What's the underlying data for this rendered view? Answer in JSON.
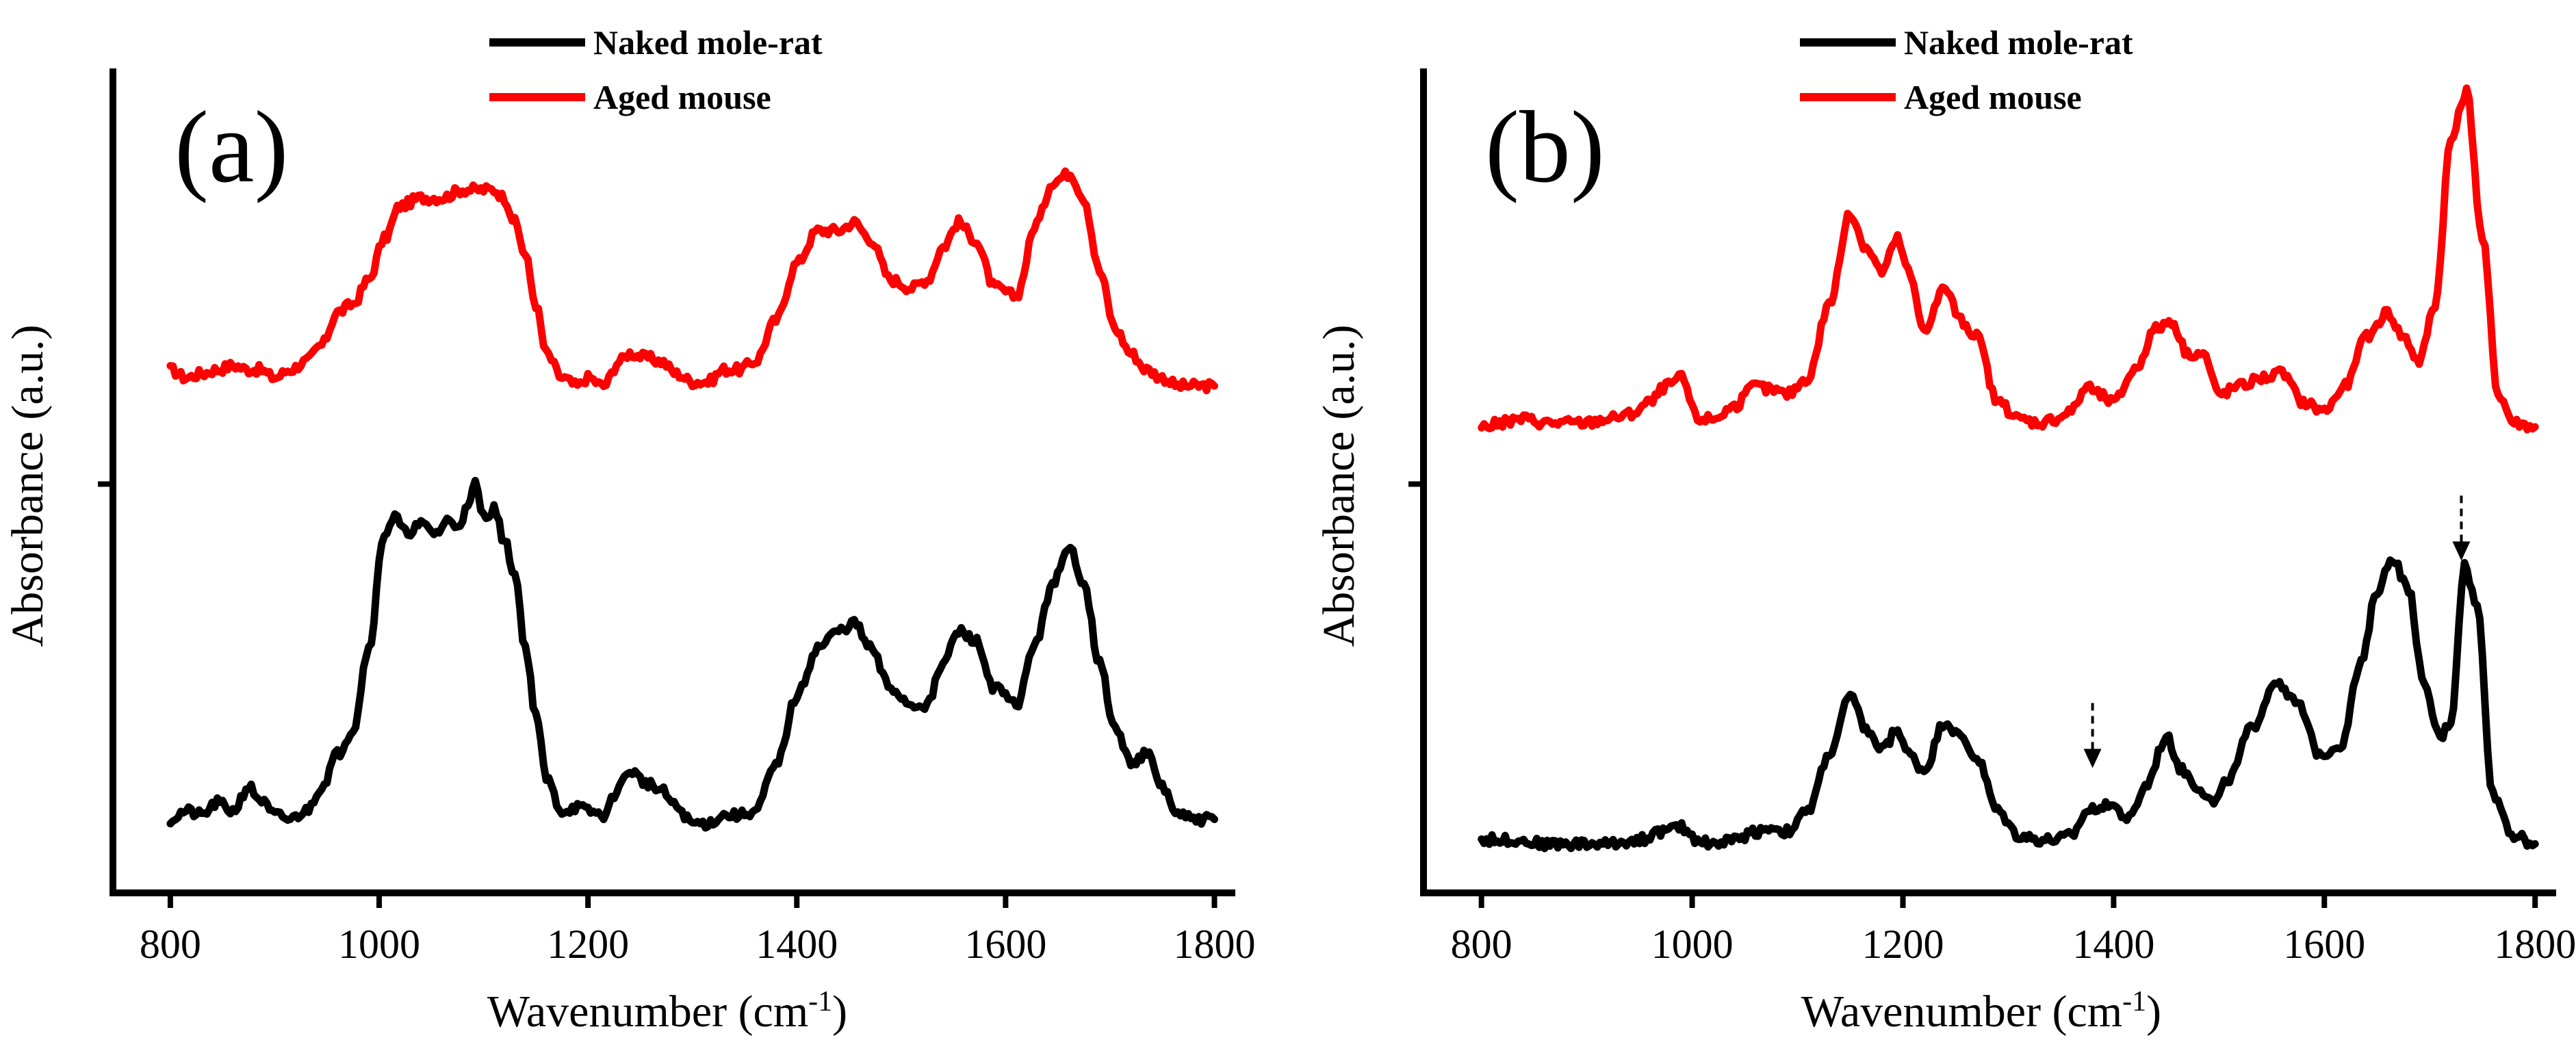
{
  "chart_data": [
    {
      "type": "line",
      "panel_label": "(a)",
      "xlabel_main": "Wavenumber (cm",
      "xlabel_sup": "-1",
      "xlabel_close": ")",
      "ylabel": "Absorbance (a.u.)",
      "xlim": [
        745,
        1820
      ],
      "ylim": [
        0,
        1
      ],
      "xticks": [
        800,
        1000,
        1200,
        1400,
        1600,
        1800
      ],
      "xtick_labels": [
        "800",
        "1000",
        "1200",
        "1400",
        "1600",
        "1800"
      ],
      "y_tick_positions": [
        0.5
      ],
      "legend_position": "top-left",
      "series": [
        {
          "name": "Naked mole-rat",
          "color": "#000000",
          "x": [
            800,
            815,
            830,
            845,
            860,
            875,
            885,
            900,
            915,
            930,
            945,
            960,
            975,
            990,
            1005,
            1015,
            1025,
            1040,
            1055,
            1065,
            1075,
            1085,
            1092,
            1100,
            1110,
            1120,
            1130,
            1140,
            1150,
            1160,
            1175,
            1190,
            1200,
            1215,
            1230,
            1240,
            1255,
            1270,
            1285,
            1300,
            1315,
            1330,
            1345,
            1360,
            1380,
            1400,
            1420,
            1440,
            1455,
            1470,
            1490,
            1510,
            1525,
            1540,
            1555,
            1570,
            1590,
            1610,
            1630,
            1645,
            1662,
            1675,
            1690,
            1705,
            1720,
            1735,
            1750,
            1765,
            1780,
            1800
          ],
          "values": [
            0.09,
            0.1,
            0.095,
            0.11,
            0.1,
            0.13,
            0.115,
            0.095,
            0.09,
            0.1,
            0.13,
            0.17,
            0.2,
            0.3,
            0.44,
            0.46,
            0.44,
            0.45,
            0.44,
            0.455,
            0.45,
            0.47,
            0.5,
            0.46,
            0.47,
            0.43,
            0.39,
            0.3,
            0.22,
            0.14,
            0.1,
            0.105,
            0.1,
            0.095,
            0.13,
            0.15,
            0.135,
            0.125,
            0.105,
            0.085,
            0.085,
            0.095,
            0.095,
            0.1,
            0.155,
            0.24,
            0.3,
            0.32,
            0.33,
            0.3,
            0.25,
            0.23,
            0.23,
            0.28,
            0.32,
            0.31,
            0.25,
            0.23,
            0.31,
            0.38,
            0.42,
            0.38,
            0.28,
            0.2,
            0.16,
            0.17,
            0.13,
            0.095,
            0.09,
            0.09
          ]
        },
        {
          "name": "Aged mouse",
          "color": "#ff0000",
          "x": [
            800,
            815,
            830,
            845,
            860,
            875,
            885,
            900,
            915,
            930,
            945,
            960,
            975,
            990,
            1005,
            1020,
            1040,
            1060,
            1080,
            1095,
            1110,
            1120,
            1130,
            1140,
            1150,
            1160,
            1175,
            1190,
            1200,
            1215,
            1230,
            1240,
            1255,
            1270,
            1285,
            1300,
            1315,
            1330,
            1345,
            1360,
            1380,
            1400,
            1420,
            1440,
            1455,
            1470,
            1490,
            1510,
            1525,
            1540,
            1555,
            1570,
            1590,
            1610,
            1630,
            1645,
            1662,
            1675,
            1690,
            1705,
            1720,
            1735,
            1750,
            1765,
            1780,
            1800
          ],
          "values": [
            0.64,
            0.63,
            0.635,
            0.64,
            0.645,
            0.64,
            0.64,
            0.63,
            0.64,
            0.65,
            0.67,
            0.71,
            0.72,
            0.75,
            0.8,
            0.84,
            0.85,
            0.85,
            0.86,
            0.86,
            0.86,
            0.85,
            0.82,
            0.78,
            0.72,
            0.66,
            0.63,
            0.62,
            0.63,
            0.62,
            0.65,
            0.66,
            0.655,
            0.65,
            0.635,
            0.625,
            0.625,
            0.64,
            0.64,
            0.65,
            0.7,
            0.77,
            0.81,
            0.81,
            0.82,
            0.8,
            0.75,
            0.74,
            0.75,
            0.79,
            0.82,
            0.8,
            0.74,
            0.73,
            0.82,
            0.87,
            0.88,
            0.85,
            0.76,
            0.69,
            0.66,
            0.64,
            0.63,
            0.62,
            0.62,
            0.62
          ]
        }
      ]
    },
    {
      "type": "line",
      "panel_label": "(b)",
      "xlabel_main": "Wavenumber (cm",
      "xlabel_sup": "-1",
      "xlabel_close": ")",
      "ylabel": "Absorbance (a.u.)",
      "xlim": [
        745,
        1820
      ],
      "ylim": [
        0,
        1
      ],
      "xticks": [
        800,
        1000,
        1200,
        1400,
        1600,
        1800
      ],
      "xtick_labels": [
        "800",
        "1000",
        "1200",
        "1400",
        "1600",
        "1800"
      ],
      "y_tick_positions": [
        0.5
      ],
      "legend_position": "top-left",
      "annotations": [
        {
          "type": "arrow",
          "x": 1380,
          "points_to": "Naked mole-rat"
        },
        {
          "type": "arrow",
          "x": 1730,
          "points_to": "Naked mole-rat"
        }
      ],
      "series": [
        {
          "name": "Naked mole-rat",
          "color": "#000000",
          "x": [
            800,
            830,
            860,
            890,
            920,
            950,
            970,
            990,
            1005,
            1020,
            1040,
            1060,
            1075,
            1090,
            1110,
            1130,
            1150,
            1165,
            1180,
            1195,
            1205,
            1220,
            1240,
            1255,
            1270,
            1290,
            1310,
            1330,
            1345,
            1360,
            1375,
            1395,
            1415,
            1430,
            1450,
            1465,
            1480,
            1495,
            1510,
            1530,
            1555,
            1575,
            1595,
            1615,
            1635,
            1650,
            1665,
            1680,
            1695,
            1710,
            1720,
            1733,
            1745,
            1760,
            1780,
            1800
          ],
          "values": [
            0.065,
            0.065,
            0.06,
            0.06,
            0.06,
            0.065,
            0.075,
            0.08,
            0.065,
            0.06,
            0.065,
            0.075,
            0.08,
            0.075,
            0.1,
            0.17,
            0.24,
            0.2,
            0.175,
            0.2,
            0.17,
            0.15,
            0.21,
            0.19,
            0.165,
            0.1,
            0.07,
            0.065,
            0.065,
            0.07,
            0.1,
            0.11,
            0.09,
            0.13,
            0.19,
            0.15,
            0.13,
            0.11,
            0.14,
            0.2,
            0.26,
            0.23,
            0.17,
            0.18,
            0.28,
            0.37,
            0.41,
            0.37,
            0.25,
            0.19,
            0.21,
            0.4,
            0.35,
            0.12,
            0.07,
            0.06
          ]
        },
        {
          "name": "Aged mouse",
          "color": "#ff0000",
          "x": [
            800,
            820,
            840,
            860,
            880,
            900,
            920,
            940,
            960,
            975,
            990,
            1005,
            1020,
            1040,
            1060,
            1075,
            1090,
            1110,
            1130,
            1150,
            1165,
            1180,
            1195,
            1205,
            1220,
            1240,
            1255,
            1270,
            1290,
            1310,
            1330,
            1345,
            1360,
            1375,
            1385,
            1400,
            1420,
            1440,
            1455,
            1470,
            1485,
            1500,
            1520,
            1540,
            1560,
            1580,
            1600,
            1620,
            1640,
            1660,
            1675,
            1690,
            1705,
            1720,
            1735,
            1750,
            1765,
            1780,
            1800
          ],
          "values": [
            0.57,
            0.575,
            0.58,
            0.575,
            0.575,
            0.575,
            0.58,
            0.585,
            0.6,
            0.62,
            0.63,
            0.58,
            0.58,
            0.595,
            0.62,
            0.615,
            0.61,
            0.63,
            0.72,
            0.83,
            0.79,
            0.76,
            0.8,
            0.76,
            0.69,
            0.74,
            0.7,
            0.68,
            0.6,
            0.58,
            0.575,
            0.58,
            0.59,
            0.62,
            0.61,
            0.6,
            0.64,
            0.69,
            0.7,
            0.66,
            0.66,
            0.61,
            0.62,
            0.63,
            0.635,
            0.6,
            0.59,
            0.62,
            0.68,
            0.71,
            0.68,
            0.65,
            0.72,
            0.92,
            0.98,
            0.8,
            0.61,
            0.575,
            0.57
          ]
        }
      ]
    }
  ]
}
